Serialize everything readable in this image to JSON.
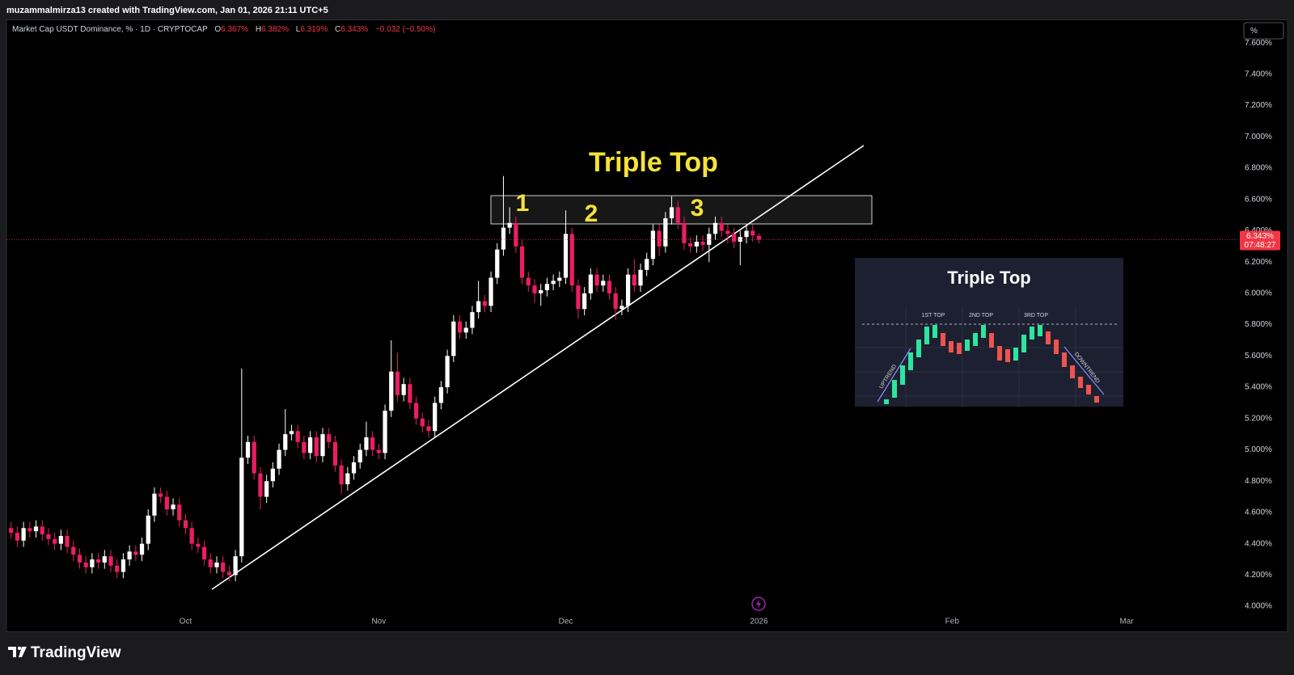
{
  "header": {
    "text": "muzammalmirza13 created with TradingView.com, Jan 01, 2026 21:11 UTC+5"
  },
  "chart_data": {
    "type": "candlestick",
    "symbol": "Market Cap USDT Dominance, % · 1D · CRYPTOCAP",
    "ohlc_letters": [
      "O",
      "H",
      "L",
      "C"
    ],
    "last_labels": [
      "6.367%",
      "6.382%",
      "6.319%",
      "6.343%"
    ],
    "change": "−0.032 (−0.50%)",
    "countdown": "07:48:27",
    "open": [
      4.5,
      4.47,
      4.42,
      4.5,
      4.48,
      4.51,
      4.46,
      4.43,
      4.4,
      4.45,
      4.38,
      4.33,
      4.28,
      4.25,
      4.3,
      4.28,
      4.32,
      4.26,
      4.22,
      4.3,
      4.35,
      4.33,
      4.4,
      4.58,
      4.72,
      4.7,
      4.62,
      4.65,
      4.55,
      4.5,
      4.4,
      4.38,
      4.3,
      4.25,
      4.28,
      4.22,
      4.2,
      4.32,
      4.95,
      5.05,
      4.85,
      4.7,
      4.8,
      4.88,
      5.0,
      5.1,
      5.12,
      5.05,
      4.98,
      5.08,
      4.96,
      5.1,
      5.05,
      4.9,
      4.78,
      4.85,
      4.92,
      5.0,
      5.08,
      5.0,
      4.98,
      5.25,
      5.5,
      5.35,
      5.42,
      5.3,
      5.2,
      5.15,
      5.12,
      5.3,
      5.4,
      5.6,
      5.82,
      5.75,
      5.78,
      5.88,
      5.95,
      5.92,
      6.1,
      6.28,
      6.42,
      6.45,
      6.3,
      6.1,
      6.05,
      6.0,
      6.02,
      6.06,
      6.08,
      6.1,
      6.38,
      6.05,
      5.9,
      6.0,
      6.12,
      6.05,
      6.08,
      6.0,
      5.9,
      5.92,
      6.12,
      6.05,
      6.15,
      6.22,
      6.4,
      6.3,
      6.48,
      6.55,
      6.45,
      6.32,
      6.3,
      6.33,
      6.31,
      6.38,
      6.45,
      6.4,
      6.38,
      6.33,
      6.36,
      6.4,
      6.367
    ],
    "high": [
      4.54,
      4.51,
      4.54,
      4.54,
      4.55,
      4.55,
      4.5,
      4.47,
      4.49,
      4.49,
      4.42,
      4.37,
      4.32,
      4.34,
      4.34,
      4.36,
      4.36,
      4.3,
      4.34,
      4.39,
      4.39,
      4.44,
      4.62,
      4.76,
      4.76,
      4.74,
      4.69,
      4.69,
      4.59,
      4.54,
      4.44,
      4.42,
      4.34,
      4.32,
      4.32,
      4.26,
      4.36,
      5.52,
      5.09,
      5.09,
      4.89,
      4.84,
      4.92,
      5.04,
      5.26,
      5.16,
      5.16,
      5.09,
      5.12,
      5.12,
      5.14,
      5.14,
      5.09,
      4.94,
      4.89,
      4.96,
      5.04,
      5.18,
      5.12,
      5.04,
      5.29,
      5.7,
      5.62,
      5.46,
      5.46,
      5.34,
      5.24,
      5.19,
      5.34,
      5.44,
      5.64,
      5.86,
      5.86,
      5.82,
      5.92,
      6.08,
      5.99,
      6.14,
      6.32,
      6.75,
      6.55,
      6.49,
      6.34,
      6.14,
      6.09,
      6.06,
      6.1,
      6.12,
      6.14,
      6.53,
      6.42,
      6.09,
      6.04,
      6.16,
      6.16,
      6.12,
      6.12,
      6.04,
      5.96,
      6.16,
      6.22,
      6.19,
      6.26,
      6.44,
      6.44,
      6.52,
      6.62,
      6.59,
      6.49,
      6.36,
      6.37,
      6.37,
      6.42,
      6.49,
      6.49,
      6.44,
      6.42,
      6.4,
      6.44,
      6.44,
      6.382
    ],
    "low": [
      4.43,
      4.38,
      4.38,
      4.44,
      4.44,
      4.42,
      4.39,
      4.36,
      4.36,
      4.34,
      4.29,
      4.24,
      4.21,
      4.21,
      4.24,
      4.24,
      4.22,
      4.18,
      4.18,
      4.26,
      4.29,
      4.29,
      4.36,
      4.54,
      4.66,
      4.58,
      4.58,
      4.51,
      4.46,
      4.36,
      4.34,
      4.26,
      4.21,
      4.21,
      4.18,
      4.16,
      4.16,
      4.28,
      4.91,
      4.81,
      4.62,
      4.66,
      4.76,
      4.84,
      4.96,
      5.06,
      5.01,
      4.94,
      4.94,
      4.92,
      4.92,
      5.01,
      4.86,
      4.72,
      4.74,
      4.81,
      4.88,
      4.96,
      4.96,
      4.94,
      4.94,
      5.21,
      5.31,
      5.31,
      5.26,
      5.16,
      5.11,
      5.08,
      5.08,
      5.26,
      5.36,
      5.56,
      5.71,
      5.71,
      5.74,
      5.84,
      5.88,
      5.88,
      6.06,
      6.24,
      6.38,
      6.26,
      6.06,
      6.01,
      5.94,
      5.92,
      5.98,
      6.02,
      6.04,
      6.06,
      6.01,
      5.84,
      5.86,
      5.96,
      6.01,
      6.01,
      5.96,
      5.83,
      5.86,
      5.88,
      6.01,
      6.01,
      6.11,
      6.18,
      6.24,
      6.26,
      6.44,
      6.41,
      6.28,
      6.26,
      6.26,
      6.27,
      6.2,
      6.34,
      6.36,
      6.32,
      6.29,
      6.18,
      6.32,
      6.33,
      6.319
    ],
    "close": [
      4.47,
      4.42,
      4.5,
      4.48,
      4.51,
      4.46,
      4.43,
      4.4,
      4.45,
      4.38,
      4.33,
      4.28,
      4.25,
      4.3,
      4.28,
      4.32,
      4.26,
      4.22,
      4.3,
      4.35,
      4.33,
      4.4,
      4.58,
      4.72,
      4.7,
      4.62,
      4.65,
      4.55,
      4.5,
      4.4,
      4.38,
      4.3,
      4.25,
      4.28,
      4.22,
      4.2,
      4.32,
      4.95,
      5.05,
      4.85,
      4.7,
      4.8,
      4.88,
      5.0,
      5.1,
      5.12,
      5.05,
      4.98,
      5.08,
      4.96,
      5.1,
      5.05,
      4.9,
      4.78,
      4.85,
      4.92,
      5.0,
      5.08,
      5.0,
      4.98,
      5.25,
      5.5,
      5.35,
      5.42,
      5.3,
      5.2,
      5.15,
      5.12,
      5.3,
      5.4,
      5.6,
      5.82,
      5.75,
      5.78,
      5.88,
      5.95,
      5.92,
      6.1,
      6.28,
      6.42,
      6.45,
      6.3,
      6.1,
      6.05,
      6.0,
      6.02,
      6.06,
      6.08,
      6.1,
      6.38,
      6.05,
      5.9,
      6.0,
      6.12,
      6.05,
      6.08,
      6.0,
      5.9,
      5.92,
      6.12,
      6.05,
      6.15,
      6.22,
      6.4,
      6.3,
      6.48,
      6.55,
      6.45,
      6.32,
      6.3,
      6.33,
      6.31,
      6.38,
      6.45,
      6.4,
      6.38,
      6.33,
      6.36,
      6.4,
      6.37,
      6.343
    ],
    "up_color": "#ffffff",
    "down_color": "#e91e63",
    "ylim": [
      3.959,
      7.748
    ],
    "yticks": [
      {
        "value": 4.0,
        "label": "4.000%"
      },
      {
        "value": 4.2,
        "label": "4.200%"
      },
      {
        "value": 4.4,
        "label": "4.400%"
      },
      {
        "value": 4.6,
        "label": "4.600%"
      },
      {
        "value": 4.8,
        "label": "4.800%"
      },
      {
        "value": 5.0,
        "label": "5.000%"
      },
      {
        "value": 5.2,
        "label": "5.200%"
      },
      {
        "value": 5.4,
        "label": "5.400%"
      },
      {
        "value": 5.6,
        "label": "5.600%"
      },
      {
        "value": 5.8,
        "label": "5.800%"
      },
      {
        "value": 6.0,
        "label": "6.000%"
      },
      {
        "value": 6.2,
        "label": "6.200%"
      },
      {
        "value": 6.4,
        "label": "6.400%"
      },
      {
        "value": 6.6,
        "label": "6.600%"
      },
      {
        "value": 6.8,
        "label": "6.800%"
      },
      {
        "value": 7.0,
        "label": "7.000%"
      },
      {
        "value": 7.2,
        "label": "7.200%"
      },
      {
        "value": 7.4,
        "label": "7.400%"
      },
      {
        "value": 7.6,
        "label": "7.600%"
      }
    ],
    "xlim": [
      -0.74,
      196.9
    ],
    "xticks": [
      {
        "value": 28,
        "label": "Oct"
      },
      {
        "value": 59,
        "label": "Nov"
      },
      {
        "value": 89,
        "label": "Dec"
      },
      {
        "value": 120,
        "label": "2026"
      },
      {
        "value": 151,
        "label": "Feb"
      },
      {
        "value": 179,
        "label": "Mar"
      }
    ],
    "grid": false,
    "scale_button": "%",
    "annotations": {
      "title": "Triple Top",
      "tops": [
        "1",
        "2",
        "3"
      ]
    }
  },
  "inset": {
    "title": "Triple Top",
    "labels": [
      "1ST TOP",
      "2ND TOP",
      "3RD TOP"
    ],
    "uptrend": "UPTREND",
    "downtrend": "DOWNTREND"
  },
  "footer": {
    "brand": "TradingView"
  }
}
